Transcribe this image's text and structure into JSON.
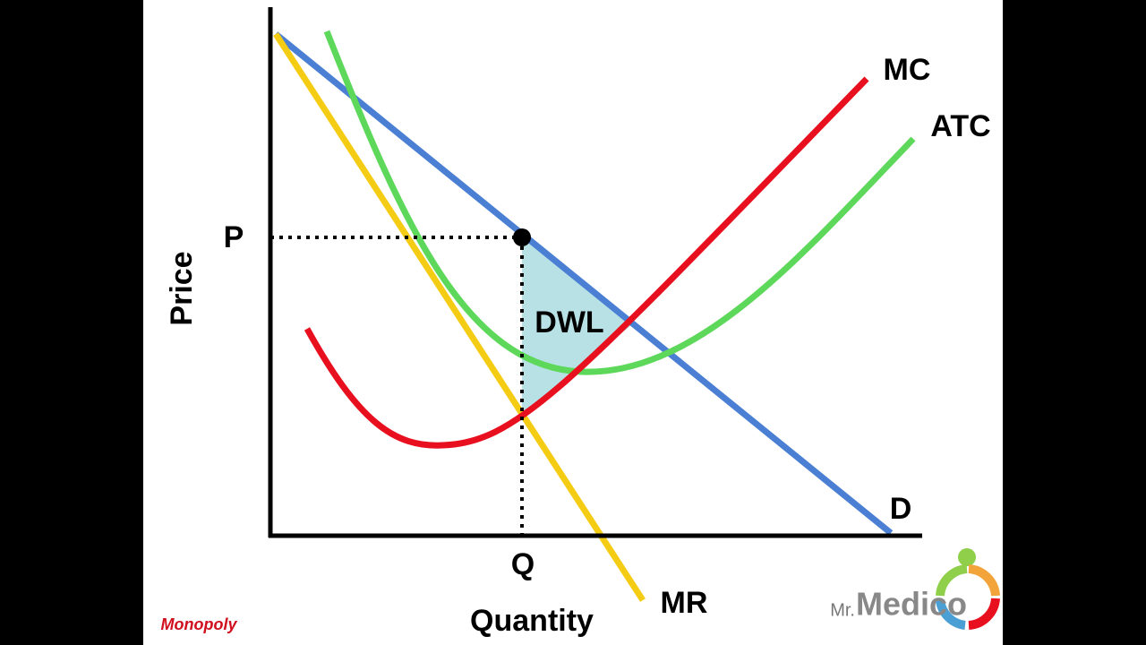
{
  "axes": {
    "y_label": "Price",
    "x_label": "Quantity"
  },
  "curves": {
    "mc": "MC",
    "atc": "ATC",
    "demand": "D",
    "mr": "MR"
  },
  "markers": {
    "price": "P",
    "quantity": "Q",
    "dwl": "DWL"
  },
  "footer": "Monopoly",
  "logo": {
    "prefix": "Mr.",
    "name": "Medico"
  }
}
